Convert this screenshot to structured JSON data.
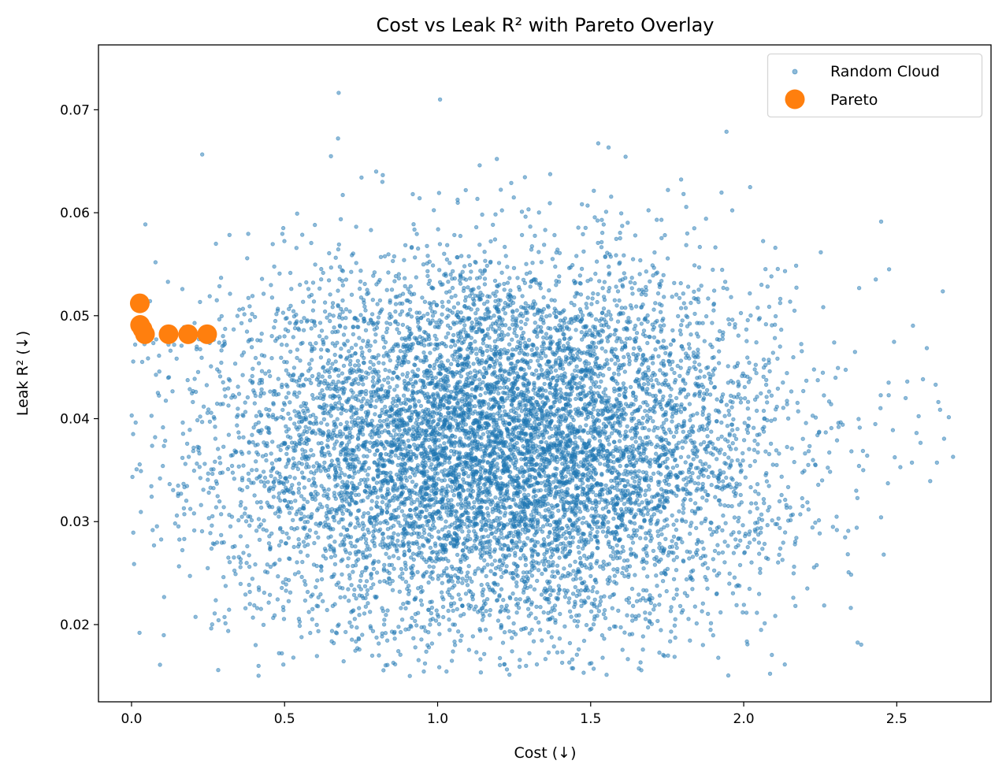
{
  "chart_data": {
    "type": "scatter",
    "title": "Cost vs Leak R² with Pareto Overlay",
    "xlabel": "Cost (↓)",
    "ylabel": "Leak R² (↓)",
    "xlim": [
      -0.108,
      2.808
    ],
    "ylim": [
      0.0125,
      0.0763
    ],
    "xticks": [
      0.0,
      0.5,
      1.0,
      1.5,
      2.0,
      2.5
    ],
    "xtick_labels": [
      "0.0",
      "0.5",
      "1.0",
      "1.5",
      "2.0",
      "2.5"
    ],
    "yticks": [
      0.02,
      0.03,
      0.04,
      0.05,
      0.06,
      0.07
    ],
    "ytick_labels": [
      "0.02",
      "0.03",
      "0.04",
      "0.05",
      "0.06",
      "0.07"
    ],
    "grid": false,
    "legend_position": "top-right",
    "series": [
      {
        "name": "Random Cloud",
        "color": "#1f77b4",
        "alpha": 0.5,
        "distribution": {
          "approx_points": 9000,
          "x_mean": 1.2,
          "x_std": 0.45,
          "x_range": [
            0.0,
            2.7
          ],
          "y_mean": 0.037,
          "y_std": 0.009,
          "y_range": [
            0.015,
            0.074
          ]
        }
      },
      {
        "name": "Pareto",
        "color": "#ff7f0e",
        "points": [
          [
            0.027,
            0.0512
          ],
          [
            0.028,
            0.0491
          ],
          [
            0.036,
            0.0487
          ],
          [
            0.044,
            0.0482
          ],
          [
            0.121,
            0.0482
          ],
          [
            0.185,
            0.0482
          ],
          [
            0.247,
            0.0482
          ]
        ]
      }
    ]
  }
}
